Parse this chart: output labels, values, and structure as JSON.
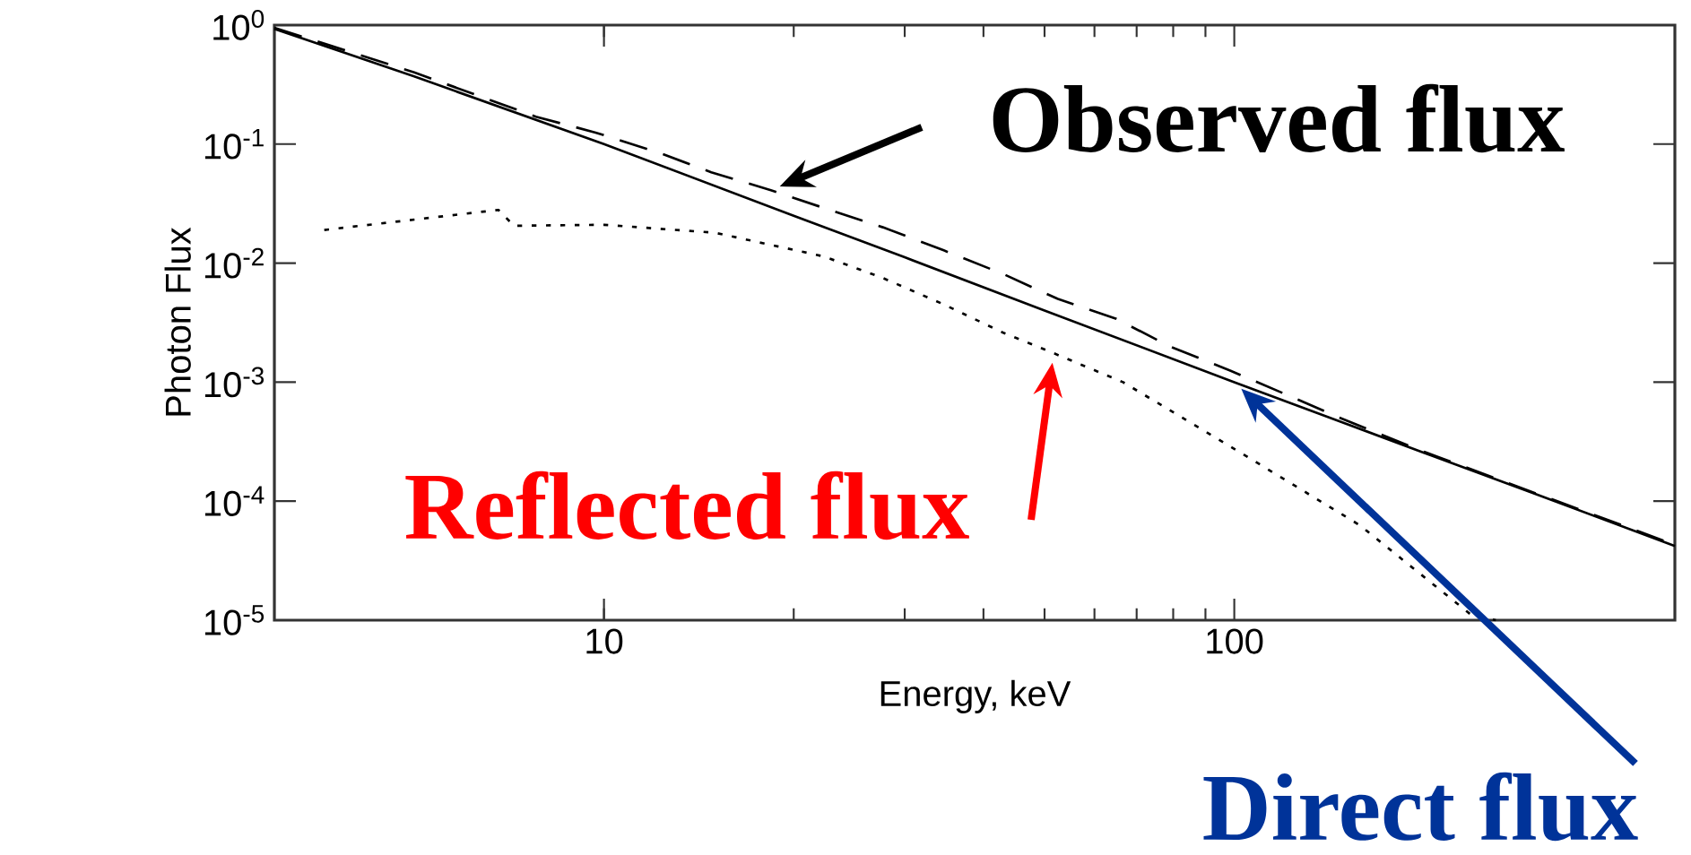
{
  "chart_data": {
    "type": "line",
    "xlabel": "Energy, keV",
    "ylabel": "Photon Flux",
    "log": "xy",
    "xlim": [
      3,
      500
    ],
    "ylim": [
      1e-05,
      1
    ],
    "xticks": [
      10,
      100
    ],
    "yticks": [
      {
        "value": 1,
        "label": "10$^{0}$"
      },
      {
        "value": 0.1,
        "label": "10$^{-1}$"
      },
      {
        "value": 0.01,
        "label": "10$^{-2}$"
      },
      {
        "value": 0.001,
        "label": "10$^{-3}$"
      },
      {
        "value": 0.0001,
        "label": "10$^{-4}$"
      },
      {
        "value": 1e-05,
        "label": "10$^{-5}$"
      }
    ],
    "series": [
      {
        "color": "#000000",
        "line_style": "solid",
        "x": [
          3,
          5,
          10,
          20,
          30,
          50,
          100,
          150,
          200,
          300,
          500
        ],
        "values": [
          0.93,
          0.37,
          0.1,
          0.025,
          0.0112,
          0.004,
          0.001,
          0.00045,
          0.000255,
          0.000115,
          4.2e-05
        ]
      },
      {
        "color": "#000000",
        "line_style": "dashed",
        "x": [
          3,
          5,
          7.8,
          9.7,
          12.2,
          14.8,
          18.4,
          22.8,
          27.7,
          34.6,
          43,
          52.5,
          65,
          79,
          98.5,
          120,
          146,
          200,
          300,
          500
        ],
        "values": [
          0.95,
          0.4,
          0.17,
          0.125,
          0.085,
          0.058,
          0.041,
          0.028,
          0.02,
          0.0128,
          0.0081,
          0.005,
          0.0034,
          0.002,
          0.00125,
          0.0008,
          0.00051,
          0.00026,
          0.000117,
          4.3e-05
        ]
      },
      {
        "color": "#000000",
        "line_style": "dotted",
        "x": [
          3.6,
          6.8,
          7.2,
          10,
          15,
          22.3,
          27.7,
          34.6,
          43,
          51.7,
          66.6,
          103,
          158,
          238,
          260
        ],
        "values": [
          0.019,
          0.028,
          0.0206,
          0.021,
          0.018,
          0.0114,
          0.0075,
          0.0045,
          0.0026,
          0.00175,
          0.001,
          0.00025,
          6.3e-05,
          1.1e-05,
          1e-05
        ]
      }
    ],
    "annotations": [
      {
        "text": "Observed flux",
        "x": 18.4,
        "y": 0.041
      },
      {
        "text": "Reflected flux",
        "x": 51.7,
        "y": 0.00175
      },
      "Direct flux"
    ]
  }
}
